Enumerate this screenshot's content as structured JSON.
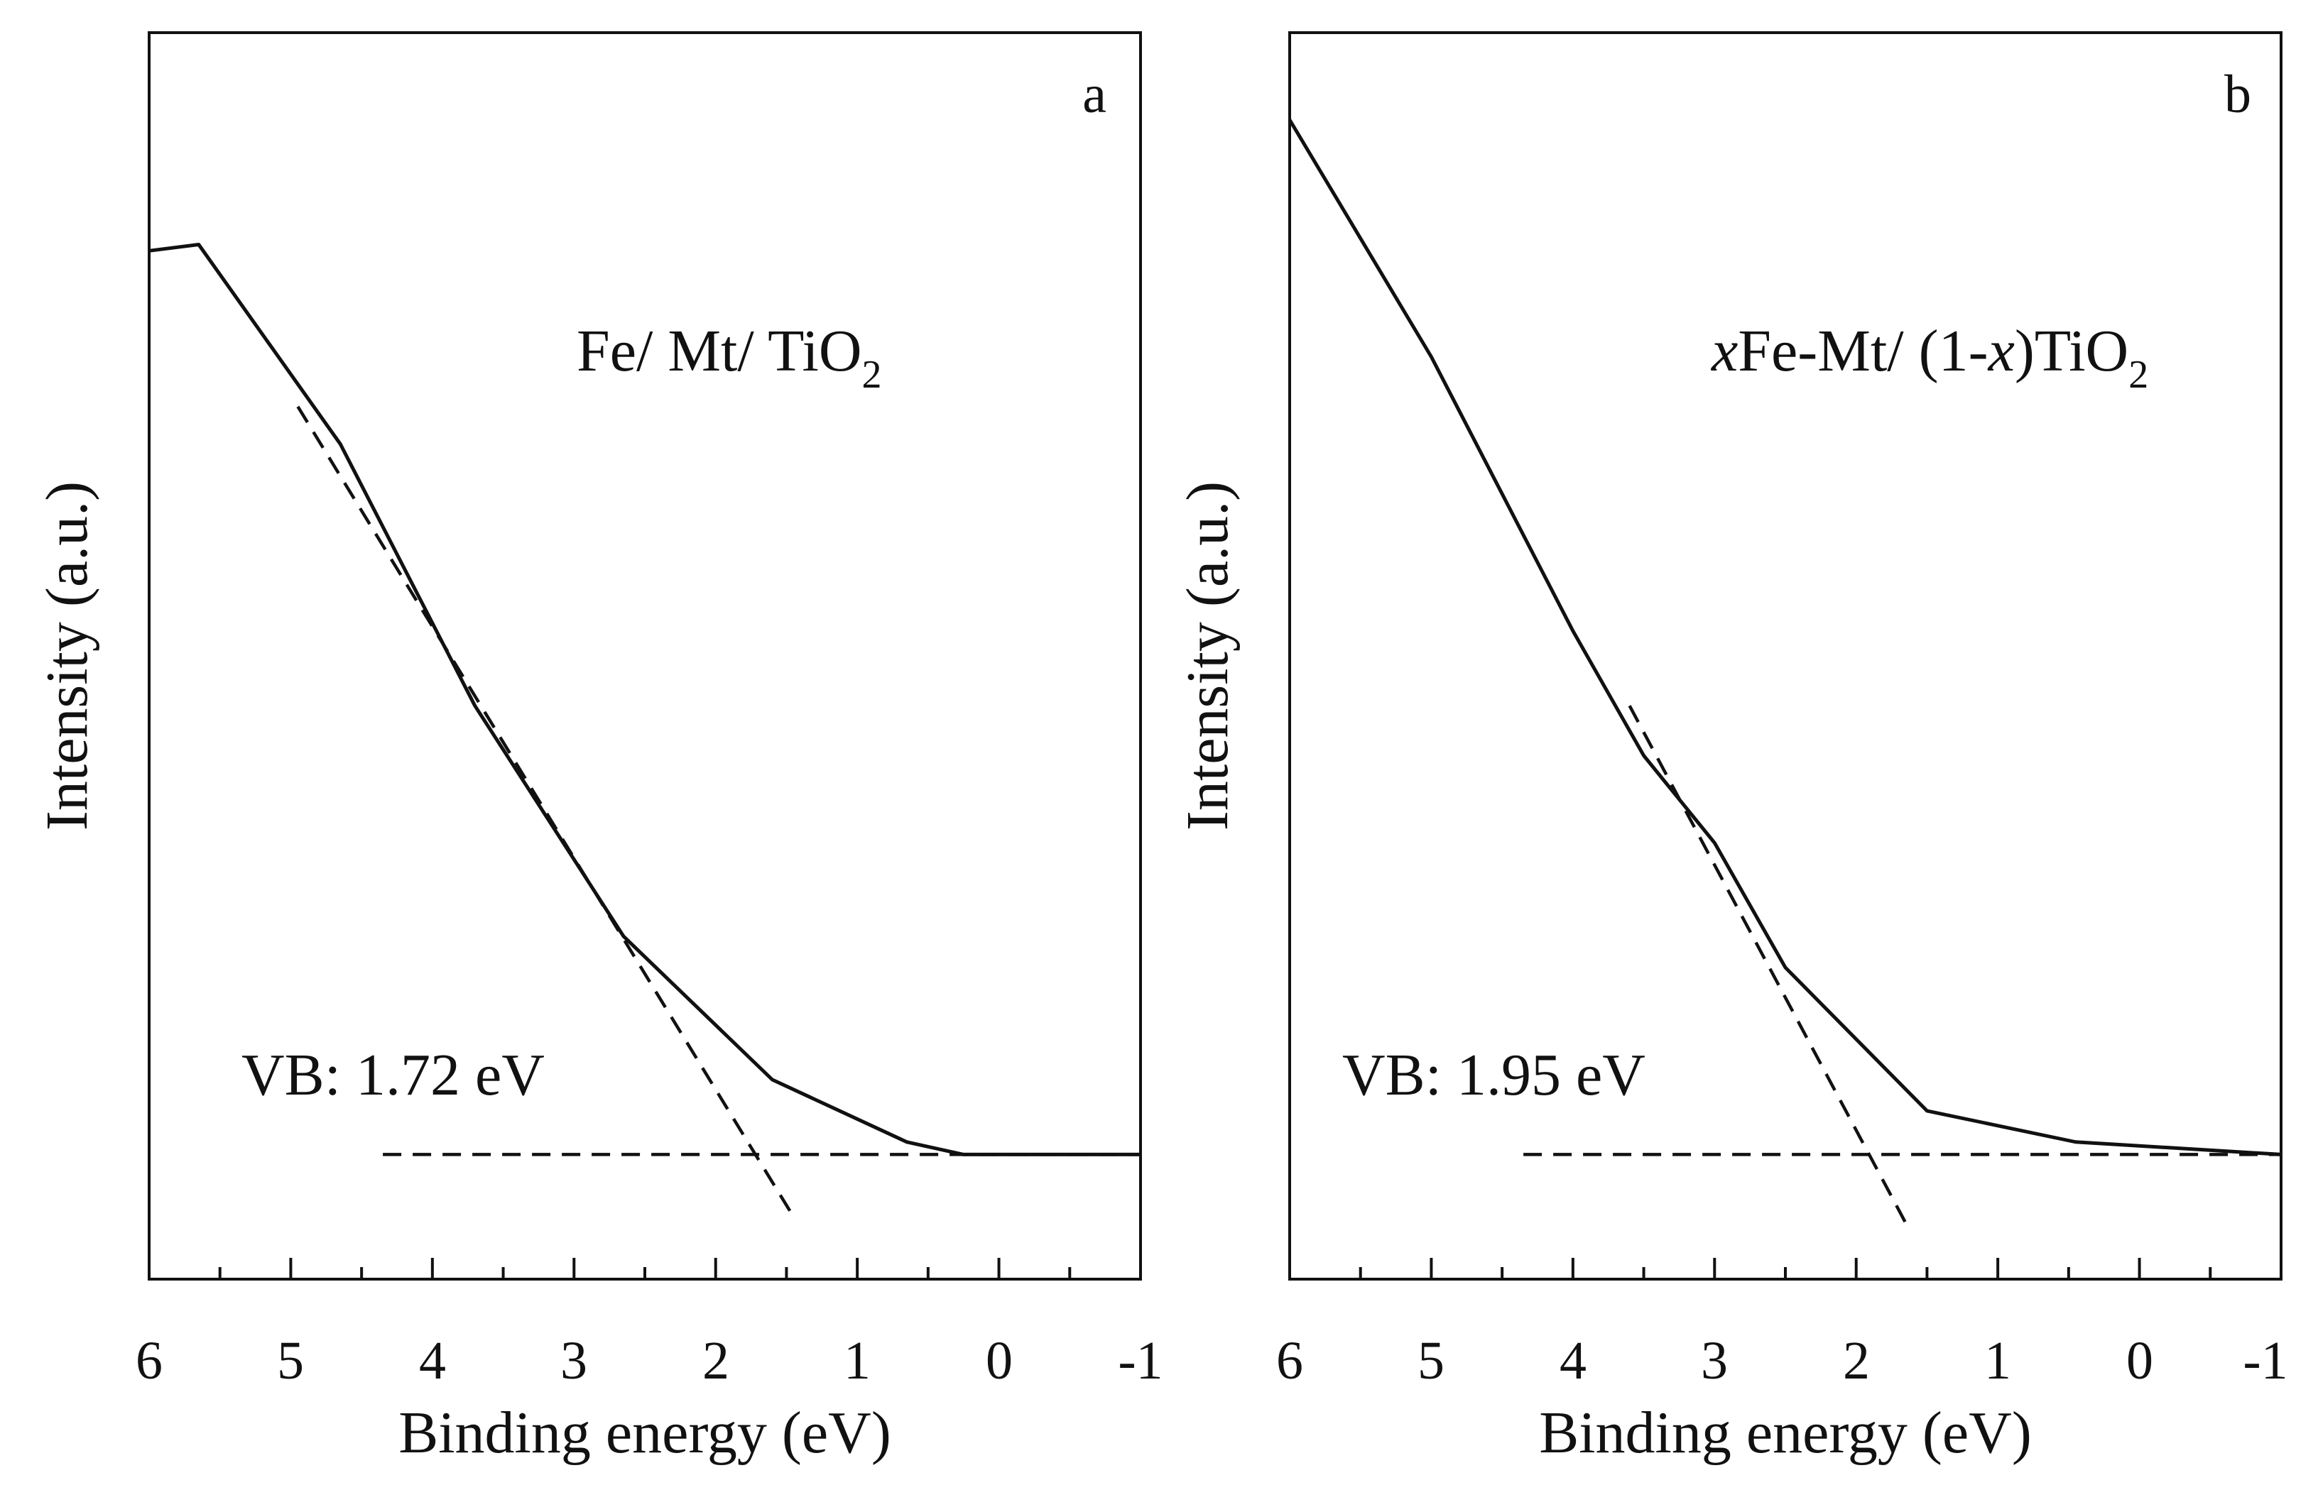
{
  "colors": {
    "ink": "#111111",
    "background": "#ffffff"
  },
  "chart_data": [
    {
      "type": "line",
      "panel_label": "a",
      "sample_name": {
        "prefix": "",
        "main": "Fe/ Mt/ TiO",
        "subscript": "2"
      },
      "annotation": "VB: 1.72 eV",
      "xlabel": "Binding energy (eV)",
      "ylabel": "Intensity (a.u.)",
      "xlim": [
        6,
        -1
      ],
      "ylim": [
        0,
        100
      ],
      "xticks": [
        6,
        5,
        4,
        3,
        2,
        1,
        0,
        -1
      ],
      "tick_labels": [
        "6",
        "5",
        "4",
        "3",
        "2",
        "1",
        "0",
        "-1"
      ],
      "yticks": [],
      "series": [
        {
          "name": "Fe/ Mt/ TiO2 spectrum",
          "style": "solid",
          "x": [
            6.0,
            5.65,
            4.65,
            3.7,
            2.65,
            1.6,
            0.65,
            0.25,
            -1.0
          ],
          "y": [
            82.5,
            83.0,
            67.0,
            46.0,
            27.5,
            16.0,
            11.0,
            10.0,
            10.0
          ]
        },
        {
          "name": "linear extrapolation",
          "style": "dashed",
          "x": [
            4.95,
            1.45
          ],
          "y": [
            70.0,
            5.0
          ]
        },
        {
          "name": "baseline",
          "style": "dashed",
          "x": [
            4.35,
            -1.0
          ],
          "y": [
            10.0,
            10.0
          ]
        }
      ]
    },
    {
      "type": "line",
      "panel_label": "b",
      "sample_name": {
        "prefix": "x",
        "main": "Fe-Mt/ (1-",
        "italic_part": "x",
        "suffix": ")TiO",
        "subscript": "2"
      },
      "annotation": "VB: 1.95 eV",
      "xlabel": "Binding energy (eV)",
      "ylabel": "Intensity (a.u.)",
      "xlim": [
        6,
        -1
      ],
      "ylim": [
        0,
        100
      ],
      "xticks": [
        6,
        5,
        4,
        3,
        2,
        1,
        0,
        -1
      ],
      "tick_labels": [
        "6",
        "5",
        "4",
        "3",
        "2",
        "1",
        "0",
        "-1"
      ],
      "yticks": [],
      "series": [
        {
          "name": "xFe-Mt/ (1-x)TiO2 spectrum",
          "style": "solid",
          "x": [
            6.0,
            5.0,
            4.0,
            3.5,
            3.0,
            2.5,
            1.5,
            0.45,
            -1.0
          ],
          "y": [
            93.0,
            74.0,
            52.0,
            42.0,
            35.0,
            25.0,
            13.5,
            11.0,
            10.0
          ]
        },
        {
          "name": "linear extrapolation",
          "style": "dashed",
          "x": [
            3.6,
            1.65
          ],
          "y": [
            46.0,
            4.5
          ]
        },
        {
          "name": "baseline",
          "style": "dashed",
          "x": [
            4.35,
            -1.0
          ],
          "y": [
            10.0,
            10.0
          ]
        }
      ]
    }
  ]
}
